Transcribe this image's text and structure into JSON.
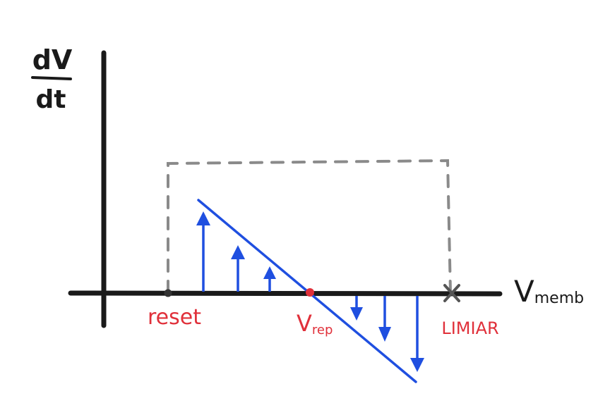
{
  "axes": {
    "y_label_numerator": "dV",
    "y_label_denominator": "dt",
    "x_label": "V",
    "x_label_subscript": "memb"
  },
  "markers": {
    "reset": "reset",
    "rest_main": "V",
    "rest_subscript": "rep",
    "threshold": "LIMIAR"
  },
  "colors": {
    "axis": "#1a1a1a",
    "line": "#1f4fe0",
    "arrows": "#1f4fe0",
    "labels": "#e0303a",
    "dashed_box": "#888888"
  },
  "arrows_up_count": 3,
  "arrows_down_count": 3
}
